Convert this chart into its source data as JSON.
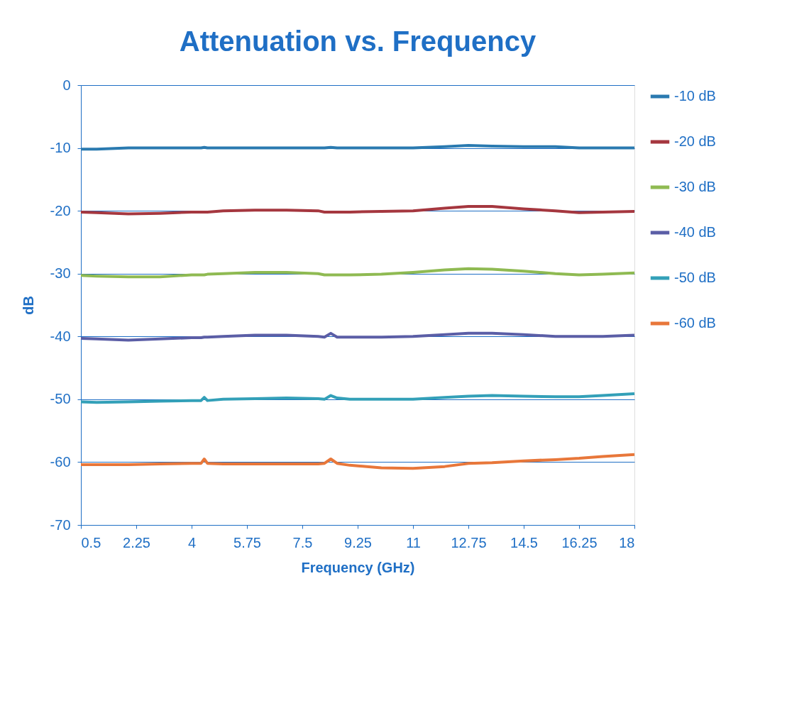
{
  "chart_data": {
    "type": "line",
    "title": "Attenuation vs. Frequency",
    "xlabel": "Frequency (GHz)",
    "ylabel": "dB",
    "x": [
      0.5,
      1,
      2,
      3,
      4,
      4.3,
      4.4,
      4.5,
      5,
      6,
      7,
      8,
      8.2,
      8.4,
      8.6,
      9,
      10,
      11,
      12,
      12.75,
      13.5,
      14.5,
      15.5,
      16.25,
      17,
      18
    ],
    "series": [
      {
        "name": "-10 dB",
        "color": "#2a7ab0",
        "values": [
          -10.2,
          -10.2,
          -10,
          -10,
          -10,
          -10,
          -9.9,
          -10,
          -10,
          -10,
          -10,
          -10,
          -10,
          -9.9,
          -10,
          -10,
          -10,
          -10,
          -9.8,
          -9.6,
          -9.7,
          -9.8,
          -9.8,
          -10,
          -10,
          -10
        ]
      },
      {
        "name": "-20 dB",
        "color": "#a5373f",
        "values": [
          -20.2,
          -20.3,
          -20.5,
          -20.4,
          -20.2,
          -20.2,
          -20.2,
          -20.2,
          -20,
          -19.9,
          -19.9,
          -20,
          -20.2,
          -20.2,
          -20.2,
          -20.2,
          -20.1,
          -20,
          -19.6,
          -19.3,
          -19.3,
          -19.7,
          -20,
          -20.3,
          -20.2,
          -20.1
        ]
      },
      {
        "name": "-30 dB",
        "color": "#8fba52",
        "values": [
          -30.3,
          -30.4,
          -30.5,
          -30.5,
          -30.2,
          -30.2,
          -30.2,
          -30.1,
          -30,
          -29.8,
          -29.8,
          -30,
          -30.2,
          -30.2,
          -30.2,
          -30.2,
          -30.1,
          -29.8,
          -29.4,
          -29.2,
          -29.3,
          -29.6,
          -30,
          -30.2,
          -30.1,
          -29.9
        ]
      },
      {
        "name": "-40 dB",
        "color": "#5b5ea6",
        "values": [
          -40.3,
          -40.4,
          -40.6,
          -40.4,
          -40.2,
          -40.2,
          -40.1,
          -40.1,
          -40,
          -39.8,
          -39.8,
          -40,
          -40.1,
          -39.5,
          -40.1,
          -40.1,
          -40.1,
          -40,
          -39.7,
          -39.5,
          -39.5,
          -39.7,
          -40,
          -40,
          -40,
          -39.8
        ]
      },
      {
        "name": "-50 dB",
        "color": "#33a0b8",
        "values": [
          -50.4,
          -50.5,
          -50.4,
          -50.3,
          -50.2,
          -50.2,
          -49.7,
          -50.2,
          -50,
          -49.9,
          -49.8,
          -49.9,
          -50,
          -49.4,
          -49.8,
          -50,
          -50,
          -50,
          -49.7,
          -49.5,
          -49.4,
          -49.5,
          -49.6,
          -49.6,
          -49.4,
          -49.1
        ]
      },
      {
        "name": "-60 dB",
        "color": "#e8773a",
        "values": [
          -60.4,
          -60.4,
          -60.4,
          -60.3,
          -60.2,
          -60.2,
          -59.5,
          -60.2,
          -60.3,
          -60.3,
          -60.3,
          -60.3,
          -60.2,
          -59.5,
          -60.2,
          -60.5,
          -60.9,
          -61,
          -60.7,
          -60.2,
          -60.1,
          -59.8,
          -59.6,
          -59.4,
          -59.1,
          -58.8
        ]
      }
    ],
    "xlim": [
      0.5,
      18
    ],
    "xticks": [
      0.5,
      2.25,
      4,
      5.75,
      7.5,
      9.25,
      11,
      12.75,
      14.5,
      16.25,
      18
    ],
    "ylim": [
      -70,
      0
    ],
    "yticks": [
      -70,
      -60,
      -50,
      -40,
      -30,
      -20,
      -10,
      0
    ],
    "grid": "y",
    "legend": "right",
    "marker": "none",
    "line_style": "solid"
  }
}
